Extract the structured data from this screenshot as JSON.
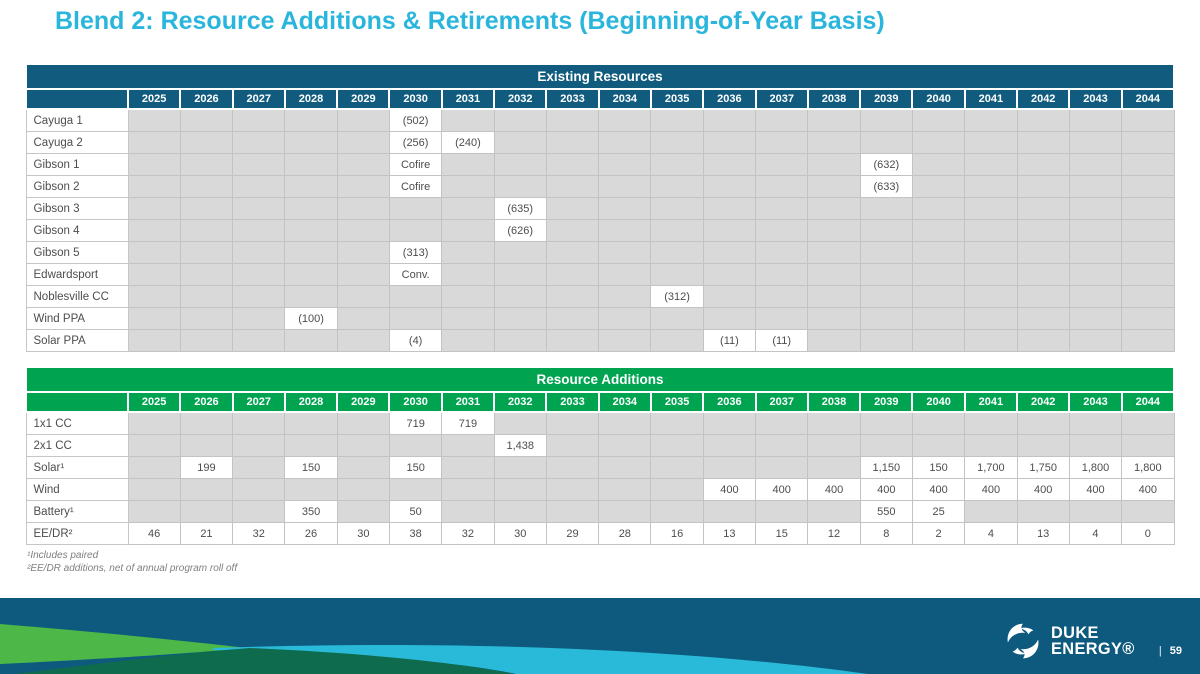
{
  "title": "Blend 2: Resource Additions & Retirements (Beginning-of-Year Basis)",
  "years": [
    "2025",
    "2026",
    "2027",
    "2028",
    "2029",
    "2030",
    "2031",
    "2032",
    "2033",
    "2034",
    "2035",
    "2036",
    "2037",
    "2038",
    "2039",
    "2040",
    "2041",
    "2042",
    "2043",
    "2044"
  ],
  "tables": [
    {
      "name": "existing-resources-table",
      "header": "Existing Resources",
      "header_color": "#115C7E",
      "rows": [
        {
          "label": "Cayuga 1",
          "cells": {
            "2030": "(502)"
          }
        },
        {
          "label": "Cayuga 2",
          "cells": {
            "2030": "(256)",
            "2031": "(240)"
          }
        },
        {
          "label": "Gibson 1",
          "cells": {
            "2030": "Cofire",
            "2039": "(632)"
          }
        },
        {
          "label": "Gibson 2",
          "cells": {
            "2030": "Cofire",
            "2039": "(633)"
          }
        },
        {
          "label": "Gibson 3",
          "cells": {
            "2032": "(635)"
          }
        },
        {
          "label": "Gibson 4",
          "cells": {
            "2032": "(626)"
          }
        },
        {
          "label": "Gibson 5",
          "cells": {
            "2030": "(313)"
          }
        },
        {
          "label": "Edwardsport",
          "cells": {
            "2030": "Conv."
          }
        },
        {
          "label": "Noblesville CC",
          "cells": {
            "2035": "(312)"
          }
        },
        {
          "label": "Wind PPA",
          "cells": {
            "2028": "(100)"
          }
        },
        {
          "label": "Solar PPA",
          "cells": {
            "2030": "(4)",
            "2036": "(11)",
            "2037": "(11)"
          }
        }
      ]
    },
    {
      "name": "resource-additions-table",
      "header": "Resource Additions",
      "header_color": "#00A450",
      "rows": [
        {
          "label": "1x1 CC",
          "cells": {
            "2030": "719",
            "2031": "719"
          }
        },
        {
          "label": "2x1 CC",
          "cells": {
            "2032": "1,438"
          }
        },
        {
          "label": "Solar¹",
          "cells": {
            "2026": "199",
            "2028": "150",
            "2030": "150",
            "2039": "1,150",
            "2040": "150",
            "2041": "1,700",
            "2042": "1,750",
            "2043": "1,800",
            "2044": "1,800"
          }
        },
        {
          "label": "Wind",
          "cells": {
            "2036": "400",
            "2037": "400",
            "2038": "400",
            "2039": "400",
            "2040": "400",
            "2041": "400",
            "2042": "400",
            "2043": "400",
            "2044": "400"
          }
        },
        {
          "label": "Battery¹",
          "cells": {
            "2028": "350",
            "2030": "50",
            "2039": "550",
            "2040": "25"
          }
        },
        {
          "label": "EE/DR²",
          "cells": {
            "2025": "46",
            "2026": "21",
            "2027": "32",
            "2028": "26",
            "2029": "30",
            "2030": "38",
            "2031": "32",
            "2032": "30",
            "2033": "29",
            "2034": "28",
            "2035": "16",
            "2036": "13",
            "2037": "15",
            "2038": "12",
            "2039": "8",
            "2040": "2",
            "2041": "4",
            "2042": "13",
            "2043": "4",
            "2044": "0"
          }
        }
      ]
    }
  ],
  "footnotes": [
    "¹Includes paired",
    "²EE/DR additions, net of annual program roll off"
  ],
  "footer": {
    "logo_line1": "DUKE",
    "logo_line2": "ENERGY®",
    "separator": "|",
    "page_number": "59"
  },
  "colors": {
    "title_cyan": "#2AB6DC",
    "header_blue": "#115C7E",
    "header_green": "#00A450",
    "empty_cell_gray": "#D9D9D9",
    "cell_border_gray": "#C3C3C3",
    "footer_blue": "#0D5A7E",
    "footer_green": "#4DB848",
    "footer_dark_teal": "#0F6B4E",
    "footer_cyan": "#2ABAD9"
  }
}
